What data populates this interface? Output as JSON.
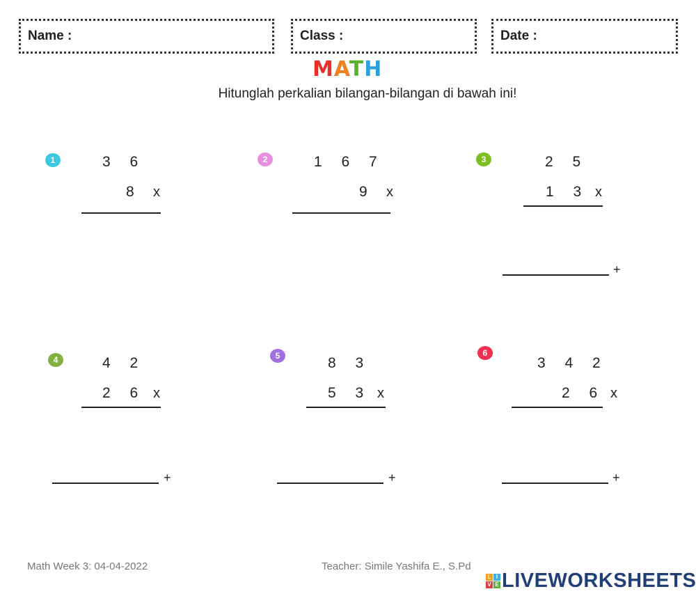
{
  "header": {
    "name_label": "Name :",
    "class_label": "Class :",
    "date_label": "Date :"
  },
  "logo": {
    "letters": [
      "M",
      "A",
      "T",
      "H"
    ],
    "colors": [
      "#e8302a",
      "#f08020",
      "#5cb030",
      "#2aa0e0"
    ]
  },
  "instruction": "Hitunglah perkalian bilangan-bilangan di bawah ini!",
  "problems": [
    {
      "number": "1",
      "color": "#3cc8e0",
      "top": "3 6",
      "bottom": "8",
      "operator": "x"
    },
    {
      "number": "2",
      "color": "#e890e0",
      "top": "1 6 7",
      "bottom": "9",
      "operator": "x"
    },
    {
      "number": "3",
      "color": "#7cc020",
      "top": "2 5",
      "bottom": "1 3",
      "operator": "x",
      "sum_operator": "+"
    },
    {
      "number": "4",
      "color": "#80b040",
      "top": "4 2",
      "bottom": "2 6",
      "operator": "x",
      "sum_operator": "+"
    },
    {
      "number": "5",
      "color": "#a070e0",
      "top": "8 3",
      "bottom": "5 3",
      "operator": "x",
      "sum_operator": "+"
    },
    {
      "number": "6",
      "color": "#f03050",
      "top": "3 4 2",
      "bottom": "2 6",
      "operator": "x",
      "sum_operator": "+"
    }
  ],
  "footer": {
    "left": "Math Week 3: 04-04-2022",
    "teacher": "Teacher: Simile Yashifa E., S.Pd"
  },
  "brand": {
    "icon_letters": [
      "L",
      "I",
      "V",
      "E"
    ],
    "icon_colors": [
      "#f0a020",
      "#40b0e0",
      "#e04040",
      "#60b040"
    ],
    "text": "LIVEWORKSHEETS"
  }
}
